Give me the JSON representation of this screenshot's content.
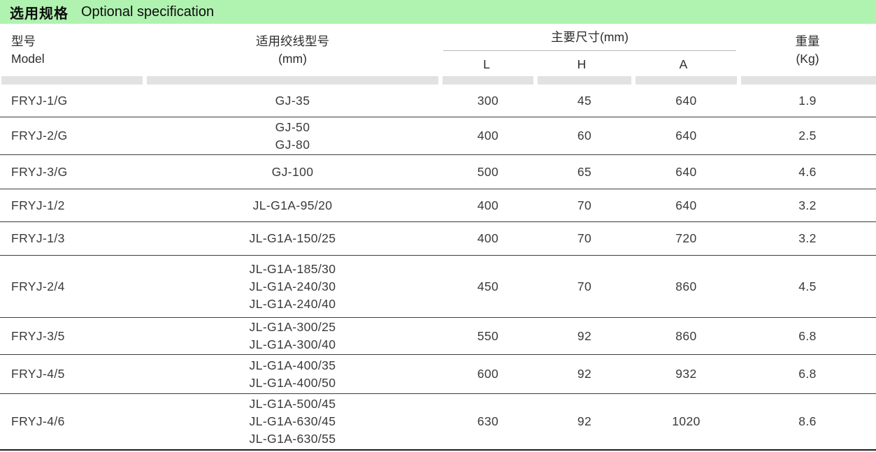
{
  "title_bar": {
    "zh": "选用规格",
    "en": "Optional specification",
    "bg_color": "#b0f2b0"
  },
  "table": {
    "header": {
      "model_zh": "型号",
      "model_en": "Model",
      "wire_zh": "适用绞线型号",
      "wire_unit": "(mm)",
      "dims_group": "主要尺寸(mm)",
      "dim_l": "L",
      "dim_h": "H",
      "dim_a": "A",
      "weight_zh": "重量",
      "weight_unit": "(Kg)"
    },
    "rows": [
      {
        "model": "FRYJ-1/G",
        "wire": "GJ-35",
        "l": "300",
        "h": "45",
        "a": "640",
        "kg": "1.9"
      },
      {
        "model": "FRYJ-2/G",
        "wire": "GJ-50\nGJ-80",
        "l": "400",
        "h": "60",
        "a": "640",
        "kg": "2.5"
      },
      {
        "model": "FRYJ-3/G",
        "wire": "GJ-100",
        "l": "500",
        "h": "65",
        "a": "640",
        "kg": "4.6"
      },
      {
        "model": "FRYJ-1/2",
        "wire": "JL-G1A-95/20",
        "l": "400",
        "h": "70",
        "a": "640",
        "kg": "3.2"
      },
      {
        "model": "FRYJ-1/3",
        "wire": "JL-G1A-150/25",
        "l": "400",
        "h": "70",
        "a": "720",
        "kg": "3.2"
      },
      {
        "model": "FRYJ-2/4",
        "wire": "JL-G1A-185/30\nJL-G1A-240/30\nJL-G1A-240/40",
        "l": "450",
        "h": "70",
        "a": "860",
        "kg": "4.5"
      },
      {
        "model": "FRYJ-3/5",
        "wire": "JL-G1A-300/25\nJL-G1A-300/40",
        "l": "550",
        "h": "92",
        "a": "860",
        "kg": "6.8"
      },
      {
        "model": "FRYJ-4/5",
        "wire": "JL-G1A-400/35\nJL-G1A-400/50",
        "l": "600",
        "h": "92",
        "a": "932",
        "kg": "6.8"
      },
      {
        "model": "FRYJ-4/6",
        "wire": "JL-G1A-500/45\nJL-G1A-630/45\nJL-G1A-630/55",
        "l": "630",
        "h": "92",
        "a": "1020",
        "kg": "8.6"
      }
    ]
  }
}
